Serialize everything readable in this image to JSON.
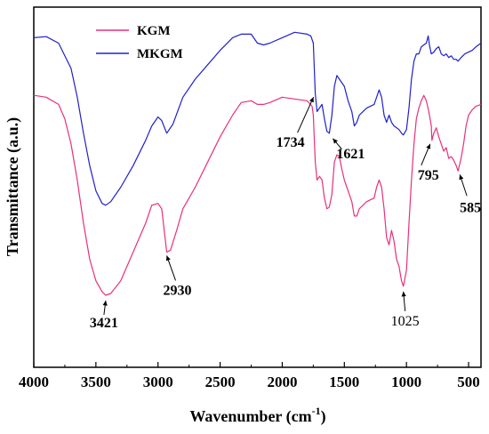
{
  "chart_data": {
    "type": "line",
    "xlabel": "Wavenumber (cm",
    "xlabel_sup": "-1",
    "xlabel_close": ")",
    "ylabel": "Transmittance (a.u.)",
    "xlim": [
      4000,
      400
    ],
    "x_reversed": true,
    "ylim": [
      0,
      100
    ],
    "y_ticks_shown": false,
    "x_ticks": [
      4000,
      3500,
      3000,
      2500,
      2000,
      1500,
      1000,
      500
    ],
    "grid": false,
    "legend_position": "top-left",
    "series": [
      {
        "name": "MKGM",
        "color": "#2020cc",
        "points": [
          [
            4000,
            91.5
          ],
          [
            3900,
            91.8
          ],
          [
            3800,
            90.0
          ],
          [
            3700,
            83.0
          ],
          [
            3650,
            75.0
          ],
          [
            3600,
            65.0
          ],
          [
            3550,
            56.0
          ],
          [
            3500,
            49.0
          ],
          [
            3450,
            45.5
          ],
          [
            3421,
            45.0
          ],
          [
            3380,
            46.0
          ],
          [
            3300,
            50.0
          ],
          [
            3200,
            56.0
          ],
          [
            3100,
            63.0
          ],
          [
            3050,
            67.0
          ],
          [
            3000,
            69.5
          ],
          [
            2970,
            68.5
          ],
          [
            2930,
            65.0
          ],
          [
            2880,
            67.5
          ],
          [
            2800,
            75.0
          ],
          [
            2700,
            80.0
          ],
          [
            2600,
            84.0
          ],
          [
            2500,
            88.0
          ],
          [
            2400,
            91.5
          ],
          [
            2330,
            92.5
          ],
          [
            2250,
            92.5
          ],
          [
            2200,
            90.0
          ],
          [
            2150,
            89.5
          ],
          [
            2100,
            90.0
          ],
          [
            2000,
            91.5
          ],
          [
            1900,
            93.0
          ],
          [
            1800,
            92.5
          ],
          [
            1770,
            92.0
          ],
          [
            1750,
            90.0
          ],
          [
            1734,
            76.0
          ],
          [
            1720,
            71.0
          ],
          [
            1700,
            72.0
          ],
          [
            1680,
            73.0
          ],
          [
            1660,
            69.0
          ],
          [
            1640,
            65.5
          ],
          [
            1621,
            65.0
          ],
          [
            1600,
            70.0
          ],
          [
            1580,
            78.0
          ],
          [
            1560,
            81.0
          ],
          [
            1540,
            80.0
          ],
          [
            1500,
            78.0
          ],
          [
            1470,
            74.0
          ],
          [
            1440,
            71.0
          ],
          [
            1420,
            67.0
          ],
          [
            1400,
            68.0
          ],
          [
            1380,
            70.0
          ],
          [
            1320,
            72.0
          ],
          [
            1260,
            73.0
          ],
          [
            1240,
            75.0
          ],
          [
            1220,
            77.0
          ],
          [
            1200,
            75.0
          ],
          [
            1180,
            70.0
          ],
          [
            1160,
            68.0
          ],
          [
            1140,
            70.0
          ],
          [
            1120,
            68.0
          ],
          [
            1100,
            67.0
          ],
          [
            1060,
            66.0
          ],
          [
            1040,
            65.0
          ],
          [
            1025,
            64.5
          ],
          [
            1000,
            66.0
          ],
          [
            980,
            72.0
          ],
          [
            960,
            80.0
          ],
          [
            940,
            85.0
          ],
          [
            920,
            87.0
          ],
          [
            900,
            87.0
          ],
          [
            880,
            89.0
          ],
          [
            860,
            89.5
          ],
          [
            840,
            90.0
          ],
          [
            825,
            92.0
          ],
          [
            815,
            89.5
          ],
          [
            800,
            87.0
          ],
          [
            780,
            87.5
          ],
          [
            760,
            88.5
          ],
          [
            740,
            89.0
          ],
          [
            720,
            87.0
          ],
          [
            700,
            86.5
          ],
          [
            680,
            87.0
          ],
          [
            660,
            86.0
          ],
          [
            640,
            86.5
          ],
          [
            620,
            85.5
          ],
          [
            600,
            85.5
          ],
          [
            585,
            85.0
          ],
          [
            560,
            86.0
          ],
          [
            530,
            87.0
          ],
          [
            500,
            87.5
          ],
          [
            470,
            88.0
          ],
          [
            440,
            89.0
          ],
          [
            420,
            89.5
          ],
          [
            400,
            90.0
          ]
        ]
      },
      {
        "name": "KGM",
        "color": "#e8307a",
        "points": [
          [
            4000,
            75.5
          ],
          [
            3900,
            75.0
          ],
          [
            3800,
            73.0
          ],
          [
            3750,
            69.0
          ],
          [
            3700,
            62.0
          ],
          [
            3650,
            52.0
          ],
          [
            3600,
            40.0
          ],
          [
            3550,
            30.0
          ],
          [
            3500,
            24.0
          ],
          [
            3450,
            21.0
          ],
          [
            3421,
            20.0
          ],
          [
            3380,
            20.5
          ],
          [
            3300,
            24.0
          ],
          [
            3200,
            32.0
          ],
          [
            3100,
            40.0
          ],
          [
            3050,
            45.0
          ],
          [
            3000,
            45.5
          ],
          [
            2970,
            44.0
          ],
          [
            2950,
            38.0
          ],
          [
            2930,
            32.0
          ],
          [
            2900,
            32.5
          ],
          [
            2850,
            38.0
          ],
          [
            2800,
            44.0
          ],
          [
            2700,
            50.0
          ],
          [
            2600,
            57.0
          ],
          [
            2500,
            64.0
          ],
          [
            2400,
            70.0
          ],
          [
            2330,
            73.5
          ],
          [
            2250,
            74.0
          ],
          [
            2200,
            73.0
          ],
          [
            2150,
            73.0
          ],
          [
            2100,
            73.5
          ],
          [
            2000,
            75.0
          ],
          [
            1900,
            74.5
          ],
          [
            1800,
            74.0
          ],
          [
            1760,
            72.5
          ],
          [
            1750,
            70.0
          ],
          [
            1734,
            57.0
          ],
          [
            1720,
            52.0
          ],
          [
            1700,
            53.0
          ],
          [
            1680,
            52.0
          ],
          [
            1660,
            47.0
          ],
          [
            1640,
            44.0
          ],
          [
            1621,
            44.5
          ],
          [
            1600,
            48.0
          ],
          [
            1580,
            57.0
          ],
          [
            1560,
            59.0
          ],
          [
            1540,
            58.5
          ],
          [
            1520,
            55.0
          ],
          [
            1500,
            52.0
          ],
          [
            1480,
            50.0
          ],
          [
            1460,
            48.0
          ],
          [
            1440,
            46.0
          ],
          [
            1420,
            42.0
          ],
          [
            1400,
            42.0
          ],
          [
            1380,
            44.0
          ],
          [
            1320,
            46.0
          ],
          [
            1260,
            47.0
          ],
          [
            1240,
            50.0
          ],
          [
            1220,
            52.0
          ],
          [
            1200,
            50.0
          ],
          [
            1180,
            44.0
          ],
          [
            1160,
            36.0
          ],
          [
            1140,
            34.0
          ],
          [
            1120,
            38.0
          ],
          [
            1100,
            35.0
          ],
          [
            1080,
            30.0
          ],
          [
            1060,
            28.0
          ],
          [
            1040,
            24.0
          ],
          [
            1025,
            22.5
          ],
          [
            1000,
            27.0
          ],
          [
            980,
            40.0
          ],
          [
            960,
            52.0
          ],
          [
            940,
            62.0
          ],
          [
            920,
            69.0
          ],
          [
            900,
            72.0
          ],
          [
            880,
            74.0
          ],
          [
            860,
            75.5
          ],
          [
            840,
            74.0
          ],
          [
            820,
            71.0
          ],
          [
            800,
            67.0
          ],
          [
            795,
            63.0
          ],
          [
            780,
            65.0
          ],
          [
            760,
            66.5
          ],
          [
            740,
            64.0
          ],
          [
            720,
            62.0
          ],
          [
            700,
            60.0
          ],
          [
            680,
            61.0
          ],
          [
            660,
            58.0
          ],
          [
            640,
            58.5
          ],
          [
            620,
            57.5
          ],
          [
            600,
            56.0
          ],
          [
            585,
            54.5
          ],
          [
            560,
            58.0
          ],
          [
            540,
            62.0
          ],
          [
            520,
            67.0
          ],
          [
            500,
            70.0
          ],
          [
            470,
            71.5
          ],
          [
            440,
            72.5
          ],
          [
            400,
            73.0
          ]
        ]
      }
    ],
    "annotations": [
      {
        "text": "3421",
        "x": 3421,
        "y": 20.0,
        "style": "bold"
      },
      {
        "text": "2930",
        "x": 2930,
        "y": 32.0,
        "style": "bold"
      },
      {
        "text": "1734",
        "x": 1734,
        "y": 76.0,
        "style": "bold"
      },
      {
        "text": "1621",
        "x": 1621,
        "y": 65.0,
        "style": "bold"
      },
      {
        "text": "1025",
        "x": 1025,
        "y": 22.5,
        "style": "normal"
      },
      {
        "text": "795",
        "x": 795,
        "y": 63.0,
        "style": "bold"
      },
      {
        "text": "585",
        "x": 585,
        "y": 54.5,
        "style": "bold"
      }
    ]
  }
}
